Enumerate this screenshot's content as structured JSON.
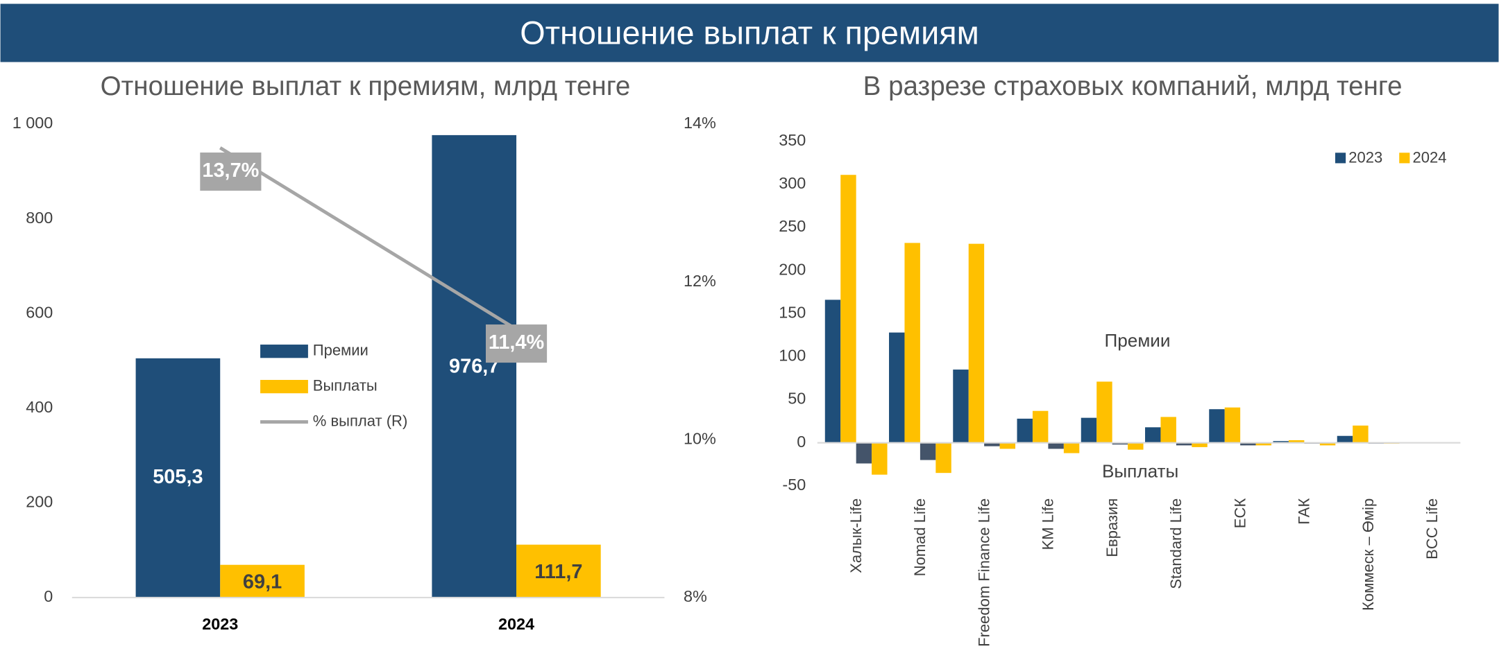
{
  "header": {
    "title": "Отношение выплат к премиям"
  },
  "chart_data": [
    {
      "type": "bar",
      "title": "Отношение выплат к премиям, млрд тенге",
      "categories": [
        "2023",
        "2024"
      ],
      "series": [
        {
          "name": "Премии",
          "color": "#1f4e79",
          "values": [
            505.3,
            976.7
          ],
          "value_labels": [
            "505,3",
            "976,7"
          ]
        },
        {
          "name": "Выплаты",
          "color": "#ffc000",
          "values": [
            69.1,
            111.7
          ],
          "value_labels": [
            "69,1",
            "111,7"
          ]
        },
        {
          "name": "%  выплат (R)",
          "type": "line",
          "axis": "y2",
          "color": "#a6a6a6",
          "values": [
            13.7,
            11.4
          ],
          "value_labels": [
            "13,7%",
            "11,4%"
          ]
        }
      ],
      "ylim": [
        0,
        1000
      ],
      "yticks": [
        0,
        200,
        400,
        600,
        800,
        {
          "value": 1000,
          "label": "1 000"
        }
      ],
      "y2lim": [
        8,
        14
      ],
      "y2ticks": [
        {
          "value": 8,
          "label": "8%"
        },
        {
          "value": 10,
          "label": "10%"
        },
        {
          "value": 12,
          "label": "12%"
        },
        {
          "value": 14,
          "label": "14%"
        }
      ],
      "grid": false
    },
    {
      "type": "bar",
      "title": "В разрезе страховых компаний, млрд тенге",
      "categories": [
        "Халык-Life",
        "Nomad Life",
        "Freedom Finance Life",
        "KM Life",
        "Евразия",
        "Standard Life",
        "ЕСК",
        "ГАК",
        "Коммеск – Өмір",
        "BCC Life"
      ],
      "series": [
        {
          "name": "2023",
          "color": "#1f4e79",
          "values": [
            166,
            128,
            85,
            28,
            29,
            18,
            39,
            2,
            8,
            0.5
          ],
          "payout_color": "#44546a",
          "payout_values": [
            -24,
            -20,
            -4,
            -7,
            -2,
            -3,
            -3,
            -1,
            -1,
            0
          ]
        },
        {
          "name": "2024",
          "color": "#ffc000",
          "values": [
            311,
            232,
            231,
            37,
            71,
            30,
            41,
            3,
            20,
            0.5
          ],
          "payout_color": "#ffc000",
          "payout_values": [
            -37,
            -35,
            -7,
            -12,
            -8,
            -5,
            -3,
            -3,
            -1,
            0
          ]
        }
      ],
      "annotations": [
        "Премии",
        "Выплаты"
      ],
      "ylim": [
        -50,
        350
      ],
      "yticks": [
        -50,
        0,
        50,
        100,
        150,
        200,
        250,
        300,
        350
      ],
      "legend": "top-right",
      "grid": false
    }
  ]
}
